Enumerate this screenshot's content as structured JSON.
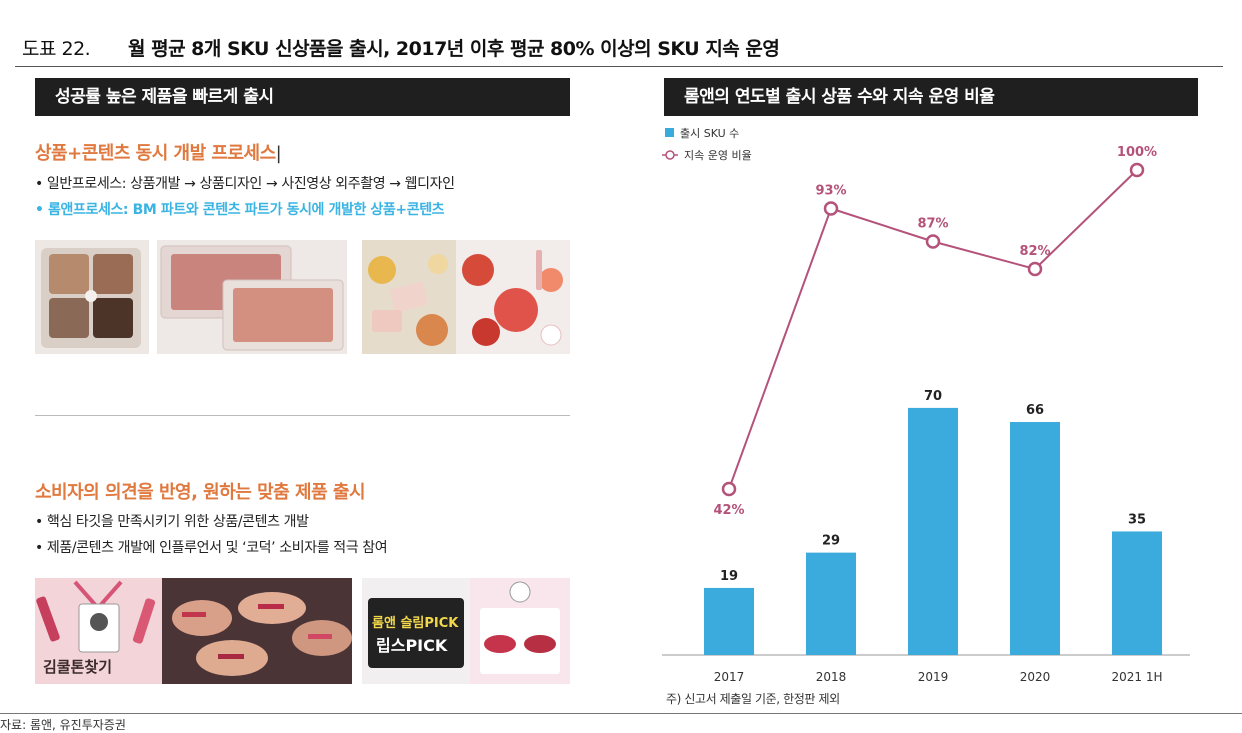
{
  "header": {
    "figure_label": "도표 22.",
    "title": "월 평균 8개 SKU 신상품을 출시, 2017년 이후 평균 80% 이상의 SKU 지속 운영"
  },
  "left_panel": {
    "banner": "성공률 높은 제품을 빠르게 출시",
    "section1": {
      "heading": "상품+콘텐츠 동시 개발 프로세스",
      "bullet1": "• 일반프로세스: 상품개발 → 상품디자인 → 사진영상 외주촬영 → 웹디자인",
      "bullet2": "• 롬앤프로세스: BM 파트와 콘텐츠 파트가 동시에 개발한 상품+콘텐츠"
    },
    "section2": {
      "heading": "소비자의 의견을 반영, 원하는 맞춤 제품 출시",
      "bullet1": "• 핵심 타깃을 만족시키기 위한 상품/콘텐츠 개발",
      "bullet2": "• 제품/콘텐츠 개발에 인플루언서 및 ‘코덕’ 소비자를 적극 참여"
    },
    "image_text": {
      "kimcool": "김쿨톤찾기",
      "pick_line1": "롬앤 슬림PICK",
      "pick_line2": "립스PICK"
    }
  },
  "right_panel": {
    "banner": "롬앤의 연도별 출시 상품 수와 지속 운영 비율",
    "note": "주) 신고서 제출일 기준, 한정판 제외"
  },
  "source": "자료: 롬앤, 유진투자증권",
  "colors": {
    "bar": "#3aabdc",
    "line": "#b4527a",
    "orange_heading": "#e0793f",
    "blue_bullet": "#3ab4e3",
    "banner_bg": "#1f1f1f"
  },
  "chart_data": {
    "type": "bar",
    "categories": [
      "2017",
      "2018",
      "2019",
      "2020",
      "2021 1H"
    ],
    "series": [
      {
        "name": "출시 SKU 수",
        "type": "bar",
        "values": [
          19,
          29,
          70,
          66,
          35
        ]
      },
      {
        "name": "지속 운영 비율",
        "type": "line",
        "values": [
          42,
          93,
          87,
          82,
          100
        ],
        "labels": [
          "42%",
          "93%",
          "87%",
          "82%",
          "100%"
        ]
      }
    ],
    "legend_position": "top-left",
    "grid": false
  }
}
